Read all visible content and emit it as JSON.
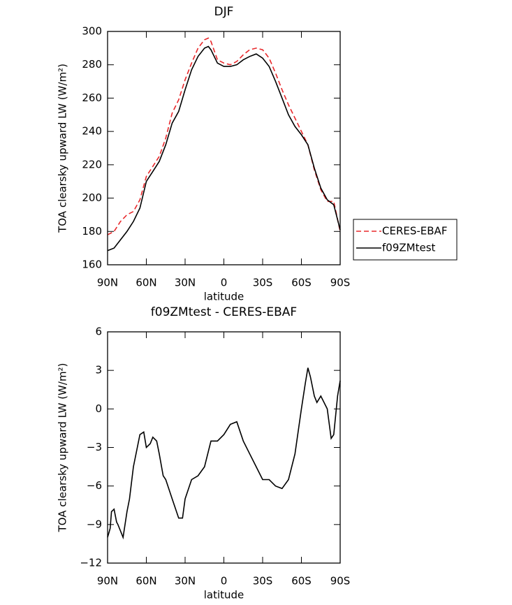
{
  "chart_data": [
    {
      "type": "line",
      "title": "DJF",
      "xlabel": "latitude",
      "ylabel": "TOA clearsky upward LW (W/m²)",
      "x": [
        90,
        85,
        80,
        75,
        70,
        65,
        60,
        55,
        50,
        45,
        40,
        35,
        30,
        25,
        20,
        15,
        12,
        10,
        5,
        0,
        -5,
        -10,
        -15,
        -20,
        -25,
        -30,
        -35,
        -40,
        -45,
        -50,
        -55,
        -60,
        -65,
        -70,
        -75,
        -80,
        -85,
        -90
      ],
      "series": [
        {
          "name": "CERES-EBAF",
          "color": "#e8282b",
          "line_style": "dashed",
          "values": [
            178,
            180,
            186,
            190,
            192,
            199,
            213,
            219,
            225,
            236,
            251,
            259,
            271,
            281,
            290,
            295,
            296,
            294,
            283,
            281,
            280,
            282,
            286,
            289,
            290,
            289,
            284,
            275,
            265,
            256,
            248,
            240,
            232,
            217,
            205,
            198,
            198,
            180
          ]
        },
        {
          "name": "f09ZMtest",
          "color": "#000000",
          "line_style": "solid",
          "values": [
            168.5,
            170,
            175,
            180,
            186,
            194,
            210,
            216,
            222,
            232,
            245,
            252,
            265,
            277,
            285,
            290,
            291,
            289,
            281,
            279,
            279,
            280,
            283,
            285,
            286.5,
            284,
            279,
            270,
            260,
            250,
            243,
            238,
            232,
            218,
            206,
            199,
            196,
            181
          ]
        }
      ],
      "xlim": [
        90,
        -90
      ],
      "xticks": [
        {
          "value": 90,
          "label": "90N"
        },
        {
          "value": 60,
          "label": "60N"
        },
        {
          "value": 30,
          "label": "30N"
        },
        0,
        {
          "value": -30,
          "label": "30S"
        },
        {
          "value": -60,
          "label": "60S"
        },
        {
          "value": -90,
          "label": "90S"
        }
      ],
      "ylim": [
        160,
        300
      ],
      "yticks": [
        160,
        180,
        200,
        220,
        240,
        260,
        280,
        300
      ],
      "legend": "right"
    },
    {
      "type": "line",
      "title": "f09ZMtest - CERES-EBAF",
      "xlabel": "latitude",
      "ylabel": "TOA clearsky upward LW (W/m²)",
      "x": [
        90,
        88,
        87,
        85,
        83,
        82,
        80,
        78,
        75,
        73,
        70,
        65,
        62,
        60,
        57,
        55,
        52,
        50,
        47,
        45,
        40,
        35,
        32,
        30,
        25,
        20,
        15,
        10,
        5,
        0,
        -5,
        -10,
        -15,
        -20,
        -25,
        -30,
        -35,
        -40,
        -45,
        -50,
        -55,
        -60,
        -63,
        -65,
        -67,
        -70,
        -72,
        -75,
        -80,
        -83,
        -85,
        -88,
        -90
      ],
      "series": [
        {
          "name": "f09ZMtest - CERES-EBAF",
          "color": "#000000",
          "line_style": "solid",
          "values": [
            -10,
            -9.3,
            -8,
            -7.8,
            -8.8,
            -9,
            -9.5,
            -10,
            -8,
            -7,
            -4.5,
            -2,
            -1.8,
            -3,
            -2.7,
            -2.2,
            -2.5,
            -3.5,
            -5.2,
            -5.5,
            -7,
            -8.5,
            -8.5,
            -7,
            -5.5,
            -5.2,
            -4.5,
            -2.5,
            -2.5,
            -2,
            -1.2,
            -1,
            -2.5,
            -3.5,
            -4.5,
            -5.5,
            -5.5,
            -6,
            -6.2,
            -5.5,
            -3.5,
            0,
            2,
            3.2,
            2.5,
            1,
            0.5,
            1,
            0,
            -2.3,
            -2,
            1,
            2.2
          ]
        }
      ],
      "xlim": [
        90,
        -90
      ],
      "xticks": [
        {
          "value": 90,
          "label": "90N"
        },
        {
          "value": 60,
          "label": "60N"
        },
        {
          "value": 30,
          "label": "30N"
        },
        0,
        {
          "value": -30,
          "label": "30S"
        },
        {
          "value": -60,
          "label": "60S"
        },
        {
          "value": -90,
          "label": "90S"
        }
      ],
      "ylim": [
        -12,
        6
      ],
      "yticks": [
        -12,
        -9,
        -6,
        -3,
        0,
        3,
        6
      ]
    }
  ]
}
